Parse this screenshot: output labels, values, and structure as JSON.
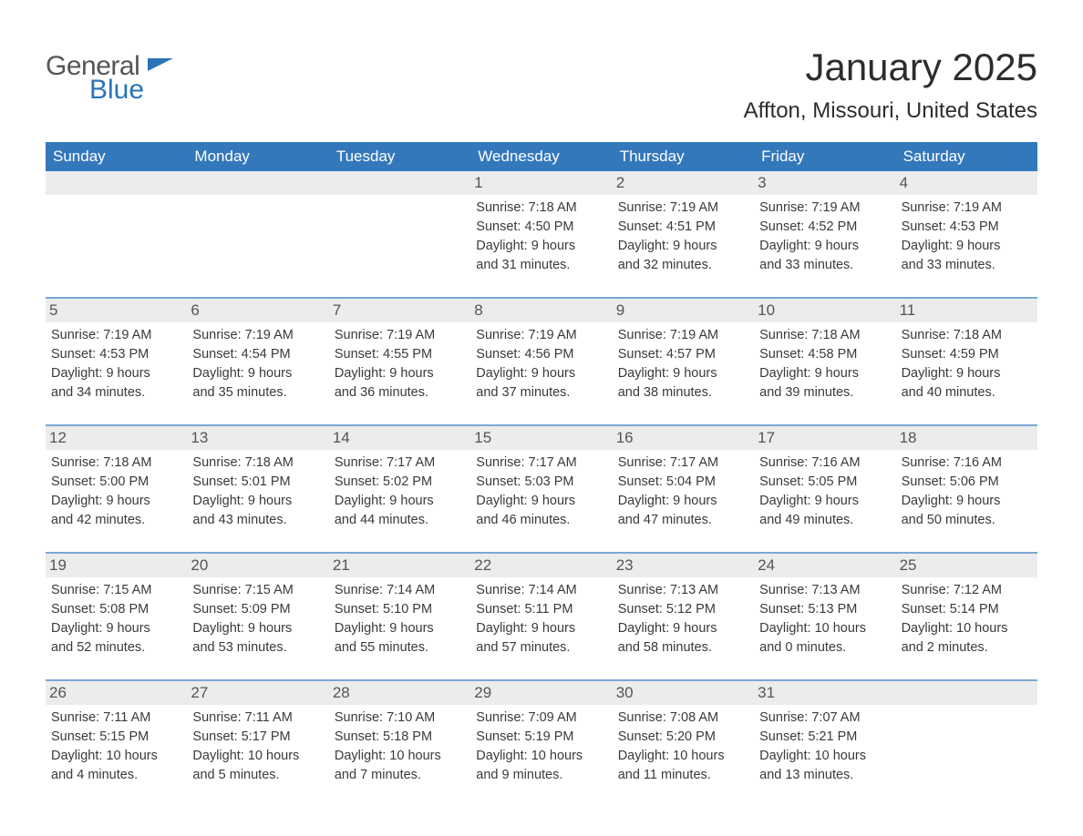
{
  "logo": {
    "general": "General",
    "blue": "Blue"
  },
  "title": "January 2025",
  "location": "Affton, Missouri, United States",
  "colors": {
    "header_bg": "#3478bc",
    "header_text": "#ffffff",
    "week_border": "#7aa9d4",
    "daynum_bg": "#ececec",
    "daynum_text": "#555555",
    "body_text": "#3a3a3a",
    "logo_gray": "#555555",
    "logo_blue": "#2b74b8",
    "background": "#ffffff"
  },
  "layout": {
    "columns": 7,
    "font_family": "Arial",
    "title_fontsize": 42,
    "location_fontsize": 24,
    "weekday_fontsize": 17,
    "daynum_fontsize": 17,
    "body_fontsize": 14.5
  },
  "weekdays": [
    "Sunday",
    "Monday",
    "Tuesday",
    "Wednesday",
    "Thursday",
    "Friday",
    "Saturday"
  ],
  "weeks": [
    [
      null,
      null,
      null,
      {
        "num": "1",
        "sunrise": "Sunrise: 7:18 AM",
        "sunset": "Sunset: 4:50 PM",
        "day1": "Daylight: 9 hours",
        "day2": "and 31 minutes."
      },
      {
        "num": "2",
        "sunrise": "Sunrise: 7:19 AM",
        "sunset": "Sunset: 4:51 PM",
        "day1": "Daylight: 9 hours",
        "day2": "and 32 minutes."
      },
      {
        "num": "3",
        "sunrise": "Sunrise: 7:19 AM",
        "sunset": "Sunset: 4:52 PM",
        "day1": "Daylight: 9 hours",
        "day2": "and 33 minutes."
      },
      {
        "num": "4",
        "sunrise": "Sunrise: 7:19 AM",
        "sunset": "Sunset: 4:53 PM",
        "day1": "Daylight: 9 hours",
        "day2": "and 33 minutes."
      }
    ],
    [
      {
        "num": "5",
        "sunrise": "Sunrise: 7:19 AM",
        "sunset": "Sunset: 4:53 PM",
        "day1": "Daylight: 9 hours",
        "day2": "and 34 minutes."
      },
      {
        "num": "6",
        "sunrise": "Sunrise: 7:19 AM",
        "sunset": "Sunset: 4:54 PM",
        "day1": "Daylight: 9 hours",
        "day2": "and 35 minutes."
      },
      {
        "num": "7",
        "sunrise": "Sunrise: 7:19 AM",
        "sunset": "Sunset: 4:55 PM",
        "day1": "Daylight: 9 hours",
        "day2": "and 36 minutes."
      },
      {
        "num": "8",
        "sunrise": "Sunrise: 7:19 AM",
        "sunset": "Sunset: 4:56 PM",
        "day1": "Daylight: 9 hours",
        "day2": "and 37 minutes."
      },
      {
        "num": "9",
        "sunrise": "Sunrise: 7:19 AM",
        "sunset": "Sunset: 4:57 PM",
        "day1": "Daylight: 9 hours",
        "day2": "and 38 minutes."
      },
      {
        "num": "10",
        "sunrise": "Sunrise: 7:18 AM",
        "sunset": "Sunset: 4:58 PM",
        "day1": "Daylight: 9 hours",
        "day2": "and 39 minutes."
      },
      {
        "num": "11",
        "sunrise": "Sunrise: 7:18 AM",
        "sunset": "Sunset: 4:59 PM",
        "day1": "Daylight: 9 hours",
        "day2": "and 40 minutes."
      }
    ],
    [
      {
        "num": "12",
        "sunrise": "Sunrise: 7:18 AM",
        "sunset": "Sunset: 5:00 PM",
        "day1": "Daylight: 9 hours",
        "day2": "and 42 minutes."
      },
      {
        "num": "13",
        "sunrise": "Sunrise: 7:18 AM",
        "sunset": "Sunset: 5:01 PM",
        "day1": "Daylight: 9 hours",
        "day2": "and 43 minutes."
      },
      {
        "num": "14",
        "sunrise": "Sunrise: 7:17 AM",
        "sunset": "Sunset: 5:02 PM",
        "day1": "Daylight: 9 hours",
        "day2": "and 44 minutes."
      },
      {
        "num": "15",
        "sunrise": "Sunrise: 7:17 AM",
        "sunset": "Sunset: 5:03 PM",
        "day1": "Daylight: 9 hours",
        "day2": "and 46 minutes."
      },
      {
        "num": "16",
        "sunrise": "Sunrise: 7:17 AM",
        "sunset": "Sunset: 5:04 PM",
        "day1": "Daylight: 9 hours",
        "day2": "and 47 minutes."
      },
      {
        "num": "17",
        "sunrise": "Sunrise: 7:16 AM",
        "sunset": "Sunset: 5:05 PM",
        "day1": "Daylight: 9 hours",
        "day2": "and 49 minutes."
      },
      {
        "num": "18",
        "sunrise": "Sunrise: 7:16 AM",
        "sunset": "Sunset: 5:06 PM",
        "day1": "Daylight: 9 hours",
        "day2": "and 50 minutes."
      }
    ],
    [
      {
        "num": "19",
        "sunrise": "Sunrise: 7:15 AM",
        "sunset": "Sunset: 5:08 PM",
        "day1": "Daylight: 9 hours",
        "day2": "and 52 minutes."
      },
      {
        "num": "20",
        "sunrise": "Sunrise: 7:15 AM",
        "sunset": "Sunset: 5:09 PM",
        "day1": "Daylight: 9 hours",
        "day2": "and 53 minutes."
      },
      {
        "num": "21",
        "sunrise": "Sunrise: 7:14 AM",
        "sunset": "Sunset: 5:10 PM",
        "day1": "Daylight: 9 hours",
        "day2": "and 55 minutes."
      },
      {
        "num": "22",
        "sunrise": "Sunrise: 7:14 AM",
        "sunset": "Sunset: 5:11 PM",
        "day1": "Daylight: 9 hours",
        "day2": "and 57 minutes."
      },
      {
        "num": "23",
        "sunrise": "Sunrise: 7:13 AM",
        "sunset": "Sunset: 5:12 PM",
        "day1": "Daylight: 9 hours",
        "day2": "and 58 minutes."
      },
      {
        "num": "24",
        "sunrise": "Sunrise: 7:13 AM",
        "sunset": "Sunset: 5:13 PM",
        "day1": "Daylight: 10 hours",
        "day2": "and 0 minutes."
      },
      {
        "num": "25",
        "sunrise": "Sunrise: 7:12 AM",
        "sunset": "Sunset: 5:14 PM",
        "day1": "Daylight: 10 hours",
        "day2": "and 2 minutes."
      }
    ],
    [
      {
        "num": "26",
        "sunrise": "Sunrise: 7:11 AM",
        "sunset": "Sunset: 5:15 PM",
        "day1": "Daylight: 10 hours",
        "day2": "and 4 minutes."
      },
      {
        "num": "27",
        "sunrise": "Sunrise: 7:11 AM",
        "sunset": "Sunset: 5:17 PM",
        "day1": "Daylight: 10 hours",
        "day2": "and 5 minutes."
      },
      {
        "num": "28",
        "sunrise": "Sunrise: 7:10 AM",
        "sunset": "Sunset: 5:18 PM",
        "day1": "Daylight: 10 hours",
        "day2": "and 7 minutes."
      },
      {
        "num": "29",
        "sunrise": "Sunrise: 7:09 AM",
        "sunset": "Sunset: 5:19 PM",
        "day1": "Daylight: 10 hours",
        "day2": "and 9 minutes."
      },
      {
        "num": "30",
        "sunrise": "Sunrise: 7:08 AM",
        "sunset": "Sunset: 5:20 PM",
        "day1": "Daylight: 10 hours",
        "day2": "and 11 minutes."
      },
      {
        "num": "31",
        "sunrise": "Sunrise: 7:07 AM",
        "sunset": "Sunset: 5:21 PM",
        "day1": "Daylight: 10 hours",
        "day2": "and 13 minutes."
      },
      null
    ]
  ]
}
